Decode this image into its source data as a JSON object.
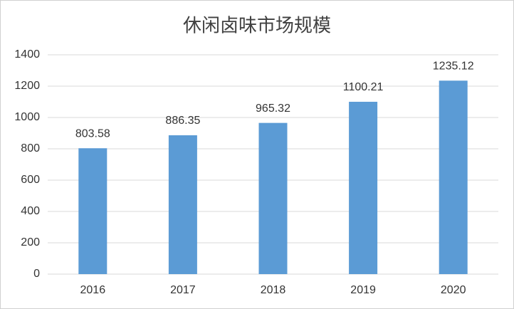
{
  "chart_data": {
    "type": "bar",
    "title": "休闲卤味市场规模",
    "categories": [
      "2016",
      "2017",
      "2018",
      "2019",
      "2020"
    ],
    "values": [
      803.58,
      886.35,
      965.32,
      1100.21,
      1235.12
    ],
    "color": "#5b9bd5",
    "ylim": [
      0,
      1400
    ],
    "yticks": [
      0,
      200,
      400,
      600,
      800,
      1000,
      1200,
      1400
    ],
    "grid": true
  }
}
